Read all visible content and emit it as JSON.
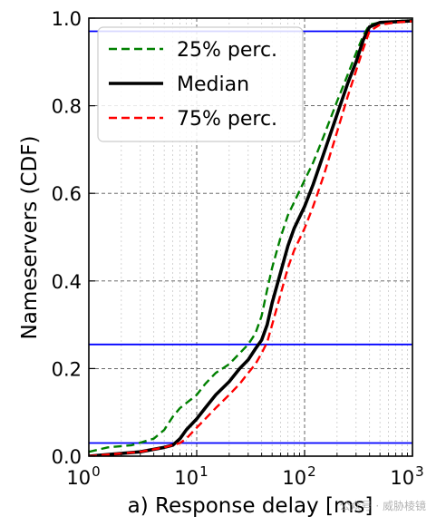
{
  "chart_data": {
    "type": "line",
    "title": "",
    "xlabel": "a) Response delay [ms]",
    "ylabel": "Nameservers (CDF)",
    "xscale": "log",
    "xlim": [
      1,
      1000
    ],
    "ylim": [
      0.0,
      1.0
    ],
    "grid": true,
    "legend_position": "top-left",
    "x_ticks": [
      {
        "value": 1,
        "base": "10",
        "exp": "0"
      },
      {
        "value": 10,
        "base": "10",
        "exp": "1"
      },
      {
        "value": 100,
        "base": "10",
        "exp": "2"
      },
      {
        "value": 1000,
        "base": "10",
        "exp": "3"
      }
    ],
    "y_ticks": [
      {
        "value": 0.0,
        "label": "0.0"
      },
      {
        "value": 0.2,
        "label": "0.2"
      },
      {
        "value": 0.4,
        "label": "0.4"
      },
      {
        "value": 0.6,
        "label": "0.6"
      },
      {
        "value": 0.8,
        "label": "0.8"
      },
      {
        "value": 1.0,
        "label": "1.0"
      }
    ],
    "hlines": [
      0.03,
      0.255,
      0.97
    ],
    "hline_color": "#0000ff",
    "series": [
      {
        "name": "25% perc.",
        "color": "#008000",
        "dash": "dashed",
        "points": [
          [
            1,
            0.01
          ],
          [
            1.5,
            0.02
          ],
          [
            2.5,
            0.025
          ],
          [
            4,
            0.04
          ],
          [
            5,
            0.06
          ],
          [
            6,
            0.09
          ],
          [
            7,
            0.11
          ],
          [
            10,
            0.14
          ],
          [
            12,
            0.165
          ],
          [
            15,
            0.19
          ],
          [
            20,
            0.21
          ],
          [
            25,
            0.235
          ],
          [
            30,
            0.255
          ],
          [
            35,
            0.28
          ],
          [
            40,
            0.32
          ],
          [
            45,
            0.38
          ],
          [
            50,
            0.43
          ],
          [
            60,
            0.5
          ],
          [
            70,
            0.55
          ],
          [
            80,
            0.58
          ],
          [
            100,
            0.63
          ],
          [
            120,
            0.67
          ],
          [
            150,
            0.73
          ],
          [
            200,
            0.81
          ],
          [
            250,
            0.87
          ],
          [
            300,
            0.92
          ],
          [
            350,
            0.96
          ],
          [
            400,
            0.985
          ],
          [
            500,
            0.99
          ],
          [
            700,
            0.993
          ],
          [
            1000,
            0.995
          ]
        ]
      },
      {
        "name": "Median",
        "color": "#000000",
        "dash": "solid",
        "points": [
          [
            1,
            0.0
          ],
          [
            3,
            0.01
          ],
          [
            5,
            0.02
          ],
          [
            6,
            0.025
          ],
          [
            7,
            0.04
          ],
          [
            8,
            0.06
          ],
          [
            10,
            0.085
          ],
          [
            12,
            0.11
          ],
          [
            15,
            0.14
          ],
          [
            20,
            0.17
          ],
          [
            25,
            0.2
          ],
          [
            30,
            0.22
          ],
          [
            35,
            0.245
          ],
          [
            40,
            0.265
          ],
          [
            45,
            0.3
          ],
          [
            50,
            0.35
          ],
          [
            60,
            0.42
          ],
          [
            70,
            0.48
          ],
          [
            80,
            0.52
          ],
          [
            100,
            0.57
          ],
          [
            120,
            0.62
          ],
          [
            150,
            0.69
          ],
          [
            200,
            0.78
          ],
          [
            250,
            0.85
          ],
          [
            300,
            0.9
          ],
          [
            350,
            0.95
          ],
          [
            400,
            0.98
          ],
          [
            500,
            0.99
          ],
          [
            700,
            0.992
          ],
          [
            1000,
            0.994
          ]
        ]
      },
      {
        "name": "75% perc.",
        "color": "#ff0000",
        "dash": "dashed",
        "points": [
          [
            1,
            0.0
          ],
          [
            3,
            0.01
          ],
          [
            5,
            0.02
          ],
          [
            7,
            0.03
          ],
          [
            8,
            0.04
          ],
          [
            10,
            0.065
          ],
          [
            12,
            0.085
          ],
          [
            15,
            0.11
          ],
          [
            20,
            0.14
          ],
          [
            25,
            0.165
          ],
          [
            30,
            0.19
          ],
          [
            35,
            0.21
          ],
          [
            40,
            0.235
          ],
          [
            45,
            0.26
          ],
          [
            50,
            0.3
          ],
          [
            60,
            0.37
          ],
          [
            70,
            0.43
          ],
          [
            80,
            0.47
          ],
          [
            100,
            0.52
          ],
          [
            120,
            0.57
          ],
          [
            150,
            0.64
          ],
          [
            200,
            0.74
          ],
          [
            250,
            0.82
          ],
          [
            300,
            0.88
          ],
          [
            350,
            0.93
          ],
          [
            400,
            0.97
          ],
          [
            500,
            0.985
          ],
          [
            700,
            0.99
          ],
          [
            1000,
            0.993
          ]
        ]
      }
    ]
  },
  "watermark": "公众号 · 威胁棱镜"
}
